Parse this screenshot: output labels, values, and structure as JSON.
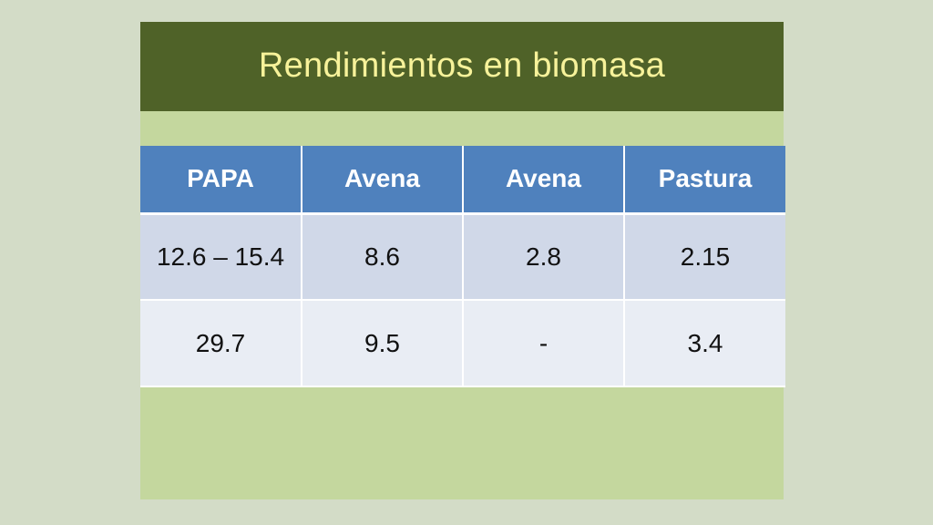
{
  "slide": {
    "title": "Rendimientos en biomasa"
  },
  "table": {
    "headers": [
      "PAPA",
      "Avena",
      "Avena",
      "Pastura"
    ],
    "rows": [
      [
        "12.6 – 15.4",
        "8.6",
        "2.8",
        "2.15"
      ],
      [
        "29.7",
        "9.5",
        "-",
        "3.4"
      ]
    ]
  },
  "colors": {
    "background": "#d3dcc7",
    "slide_body": "#c4d79e",
    "title_bar": "#4f6228",
    "title_text": "#f7f29a",
    "header_fill": "#4f81bd",
    "row_odd_fill": "#d0d8e8",
    "row_even_fill": "#e9edf4"
  }
}
